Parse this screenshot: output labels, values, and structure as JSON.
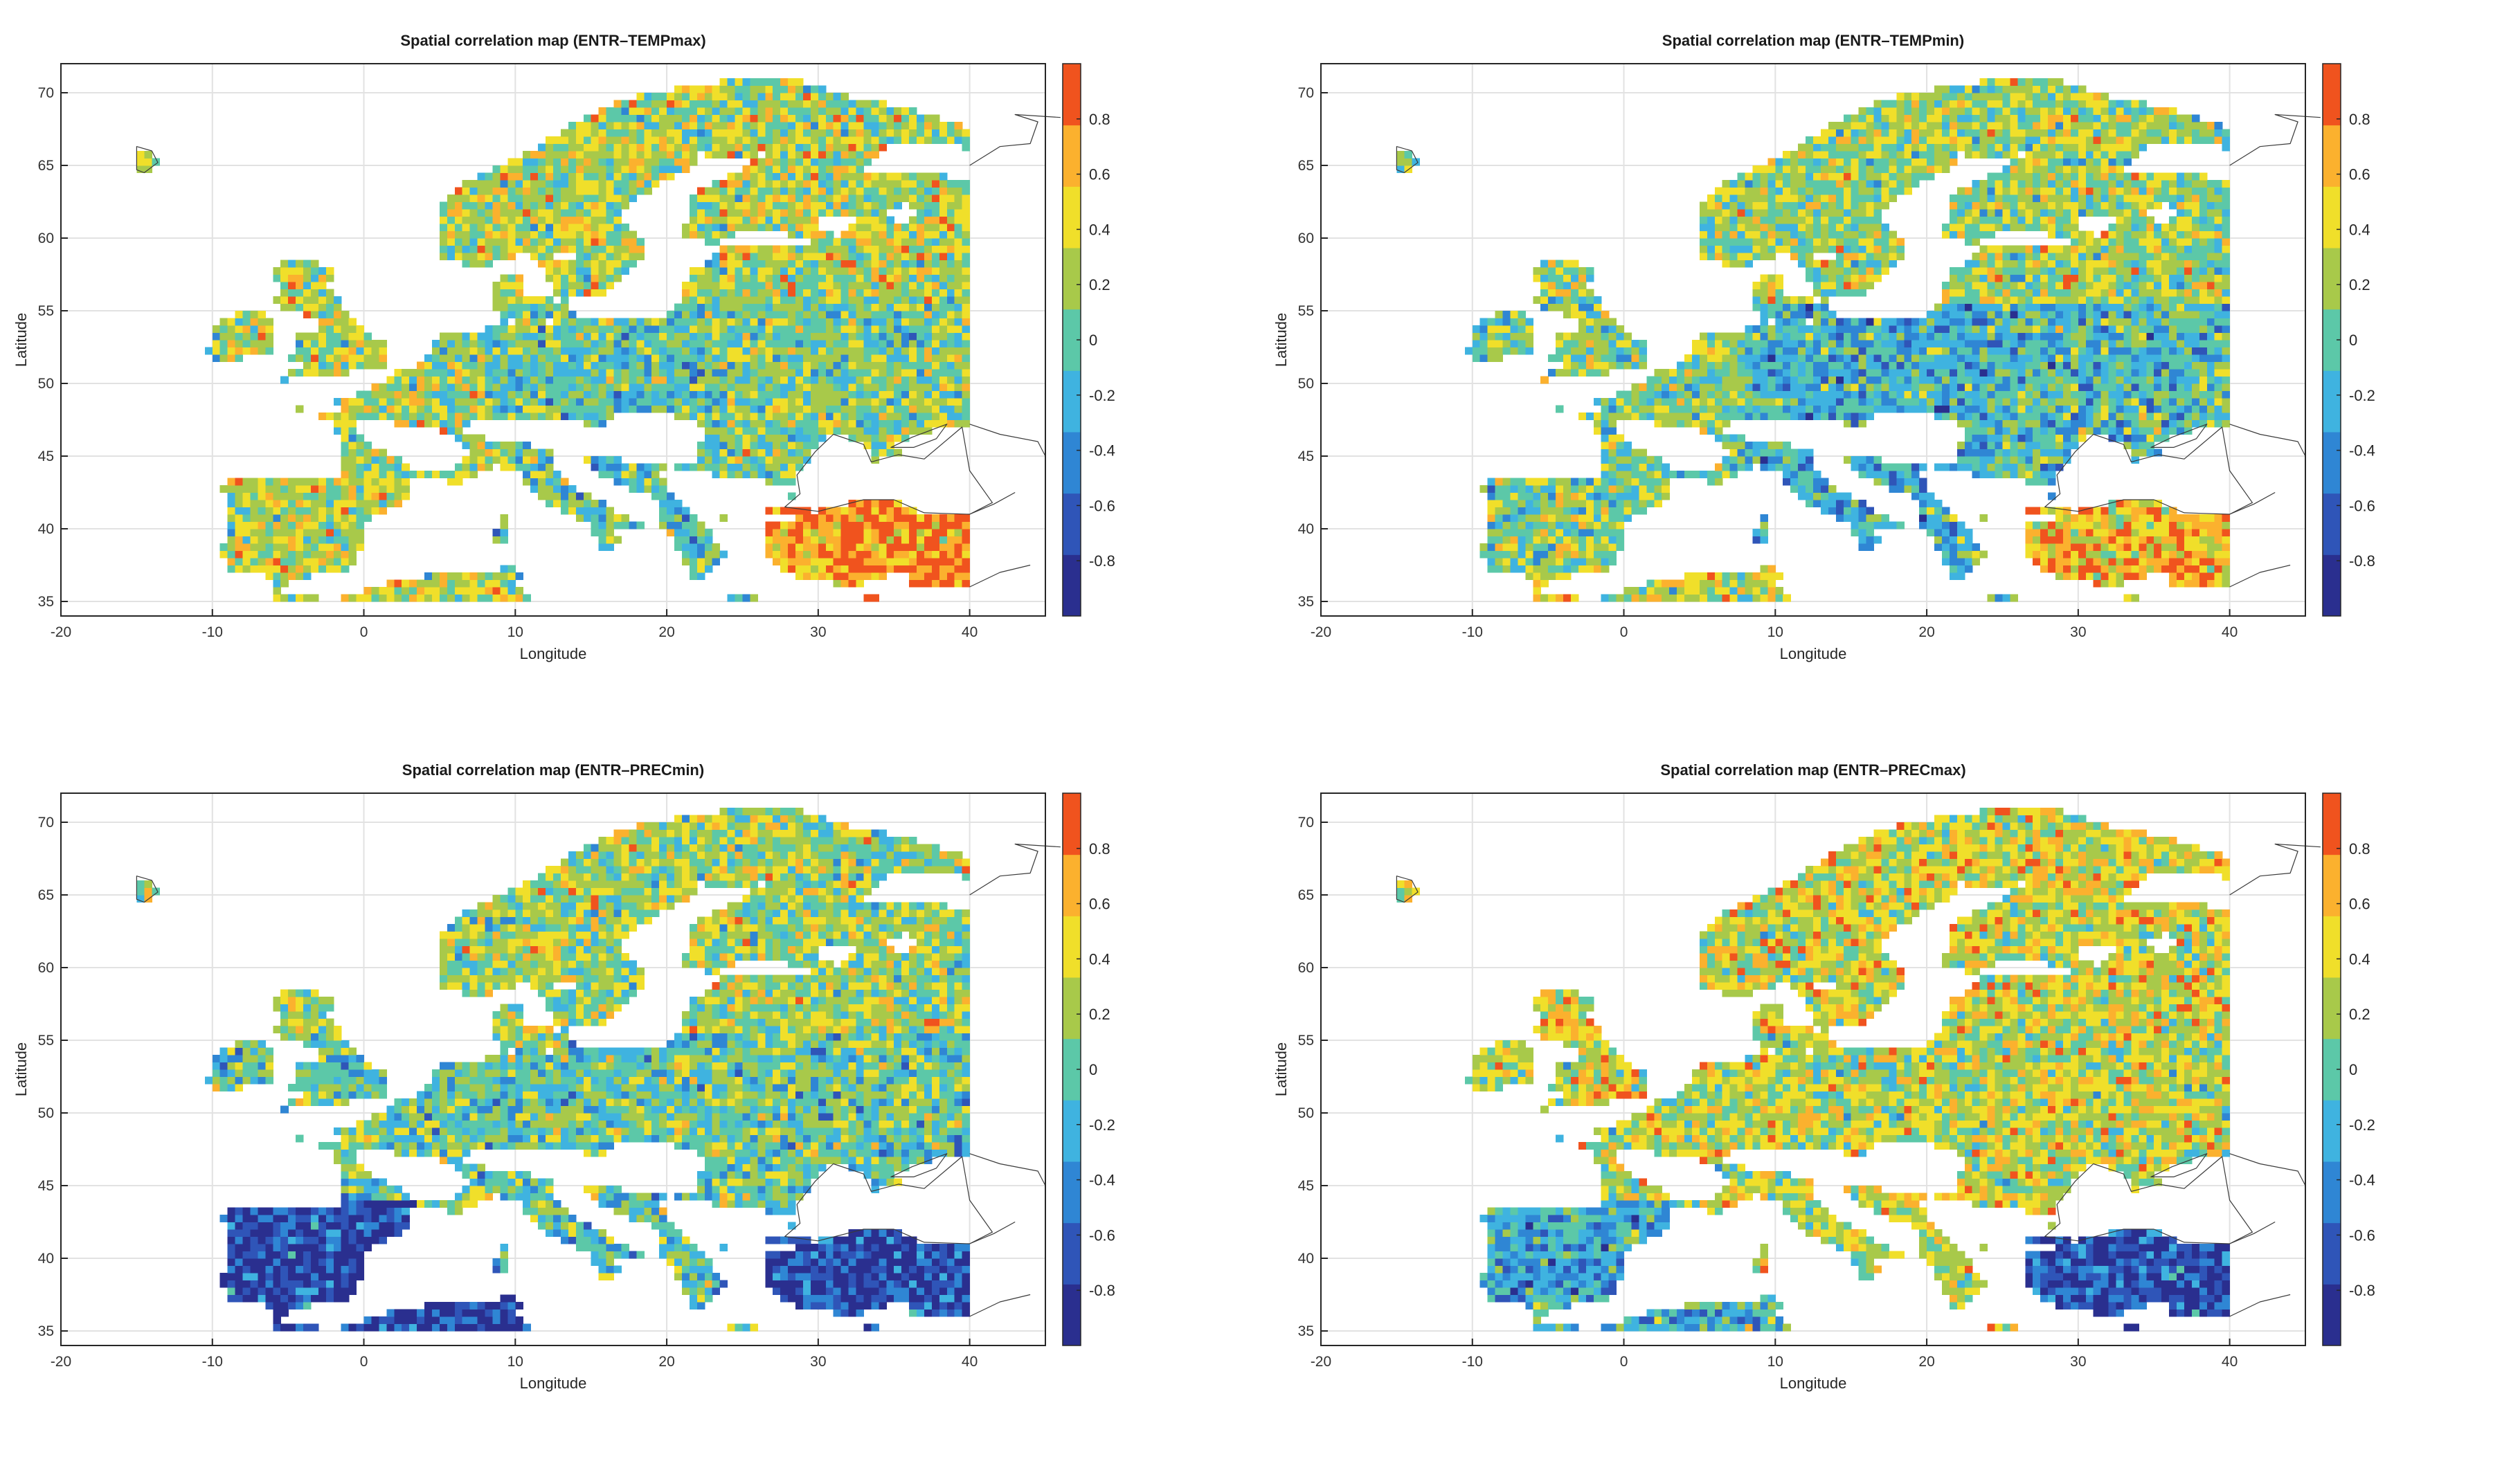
{
  "colorbar": {
    "ticks": [
      "0.8",
      "0.6",
      "0.4",
      "0.2",
      "0",
      "-0.2",
      "-0.4",
      "-0.6",
      "-0.8"
    ],
    "colors": [
      "#2a2f8f",
      "#2f55b8",
      "#2f86d4",
      "#3fb3e0",
      "#5cc8a8",
      "#a8c94a",
      "#f0df2a",
      "#fbb12e",
      "#f0531e"
    ],
    "range": [
      -1,
      1
    ]
  },
  "axes": {
    "x_ticks": [
      "-20",
      "-10",
      "0",
      "10",
      "20",
      "30",
      "40"
    ],
    "y_ticks": [
      "70",
      "65",
      "60",
      "55",
      "50",
      "45",
      "40",
      "35"
    ],
    "xlabel": "Longitude",
    "ylabel": "Latitude",
    "xlim": [
      -20,
      45
    ],
    "ylim": [
      34,
      72
    ],
    "grid": true
  },
  "chart_data": [
    {
      "type": "heatmap",
      "title": "Spatial correlation map (ENTR–TEMPmax)",
      "xlabel": "Longitude",
      "ylabel": "Latitude",
      "xlim": [
        -20,
        45
      ],
      "ylim": [
        34,
        72
      ],
      "colorbar_range": [
        -1,
        1
      ],
      "regional_pattern": {
        "north": 0.25,
        "west": 0.25,
        "central": 0.0,
        "east": 0.1,
        "iberia": 0.3,
        "turkey": 0.75,
        "north_africa": 0.3
      }
    },
    {
      "type": "heatmap",
      "title": "Spatial correlation map (ENTR–TEMPmin)",
      "xlabel": "Longitude",
      "ylabel": "Latitude",
      "xlim": [
        -20,
        45
      ],
      "ylim": [
        34,
        72
      ],
      "colorbar_range": [
        -1,
        1
      ],
      "regional_pattern": {
        "north": 0.2,
        "west": 0.1,
        "central": -0.2,
        "east": -0.1,
        "iberia": 0.1,
        "turkey": 0.6,
        "north_africa": 0.3
      }
    },
    {
      "type": "heatmap",
      "title": "Spatial correlation map (ENTR–PRECmin)",
      "xlabel": "Longitude",
      "ylabel": "Latitude",
      "xlim": [
        -20,
        45
      ],
      "ylim": [
        34,
        72
      ],
      "colorbar_range": [
        -1,
        1
      ],
      "regional_pattern": {
        "north": 0.2,
        "west": 0.0,
        "central": 0.0,
        "east": 0.0,
        "iberia": -0.75,
        "turkey": -0.75,
        "north_africa": -0.8
      }
    },
    {
      "type": "heatmap",
      "title": "Spatial correlation map (ENTR–PRECmax)",
      "xlabel": "Longitude",
      "ylabel": "Latitude",
      "xlim": [
        -20,
        45
      ],
      "ylim": [
        34,
        72
      ],
      "colorbar_range": [
        -1,
        1
      ],
      "regional_pattern": {
        "north": 0.35,
        "west": 0.3,
        "central": 0.25,
        "east": 0.3,
        "iberia": -0.3,
        "turkey": -0.7,
        "north_africa": -0.1
      }
    }
  ]
}
